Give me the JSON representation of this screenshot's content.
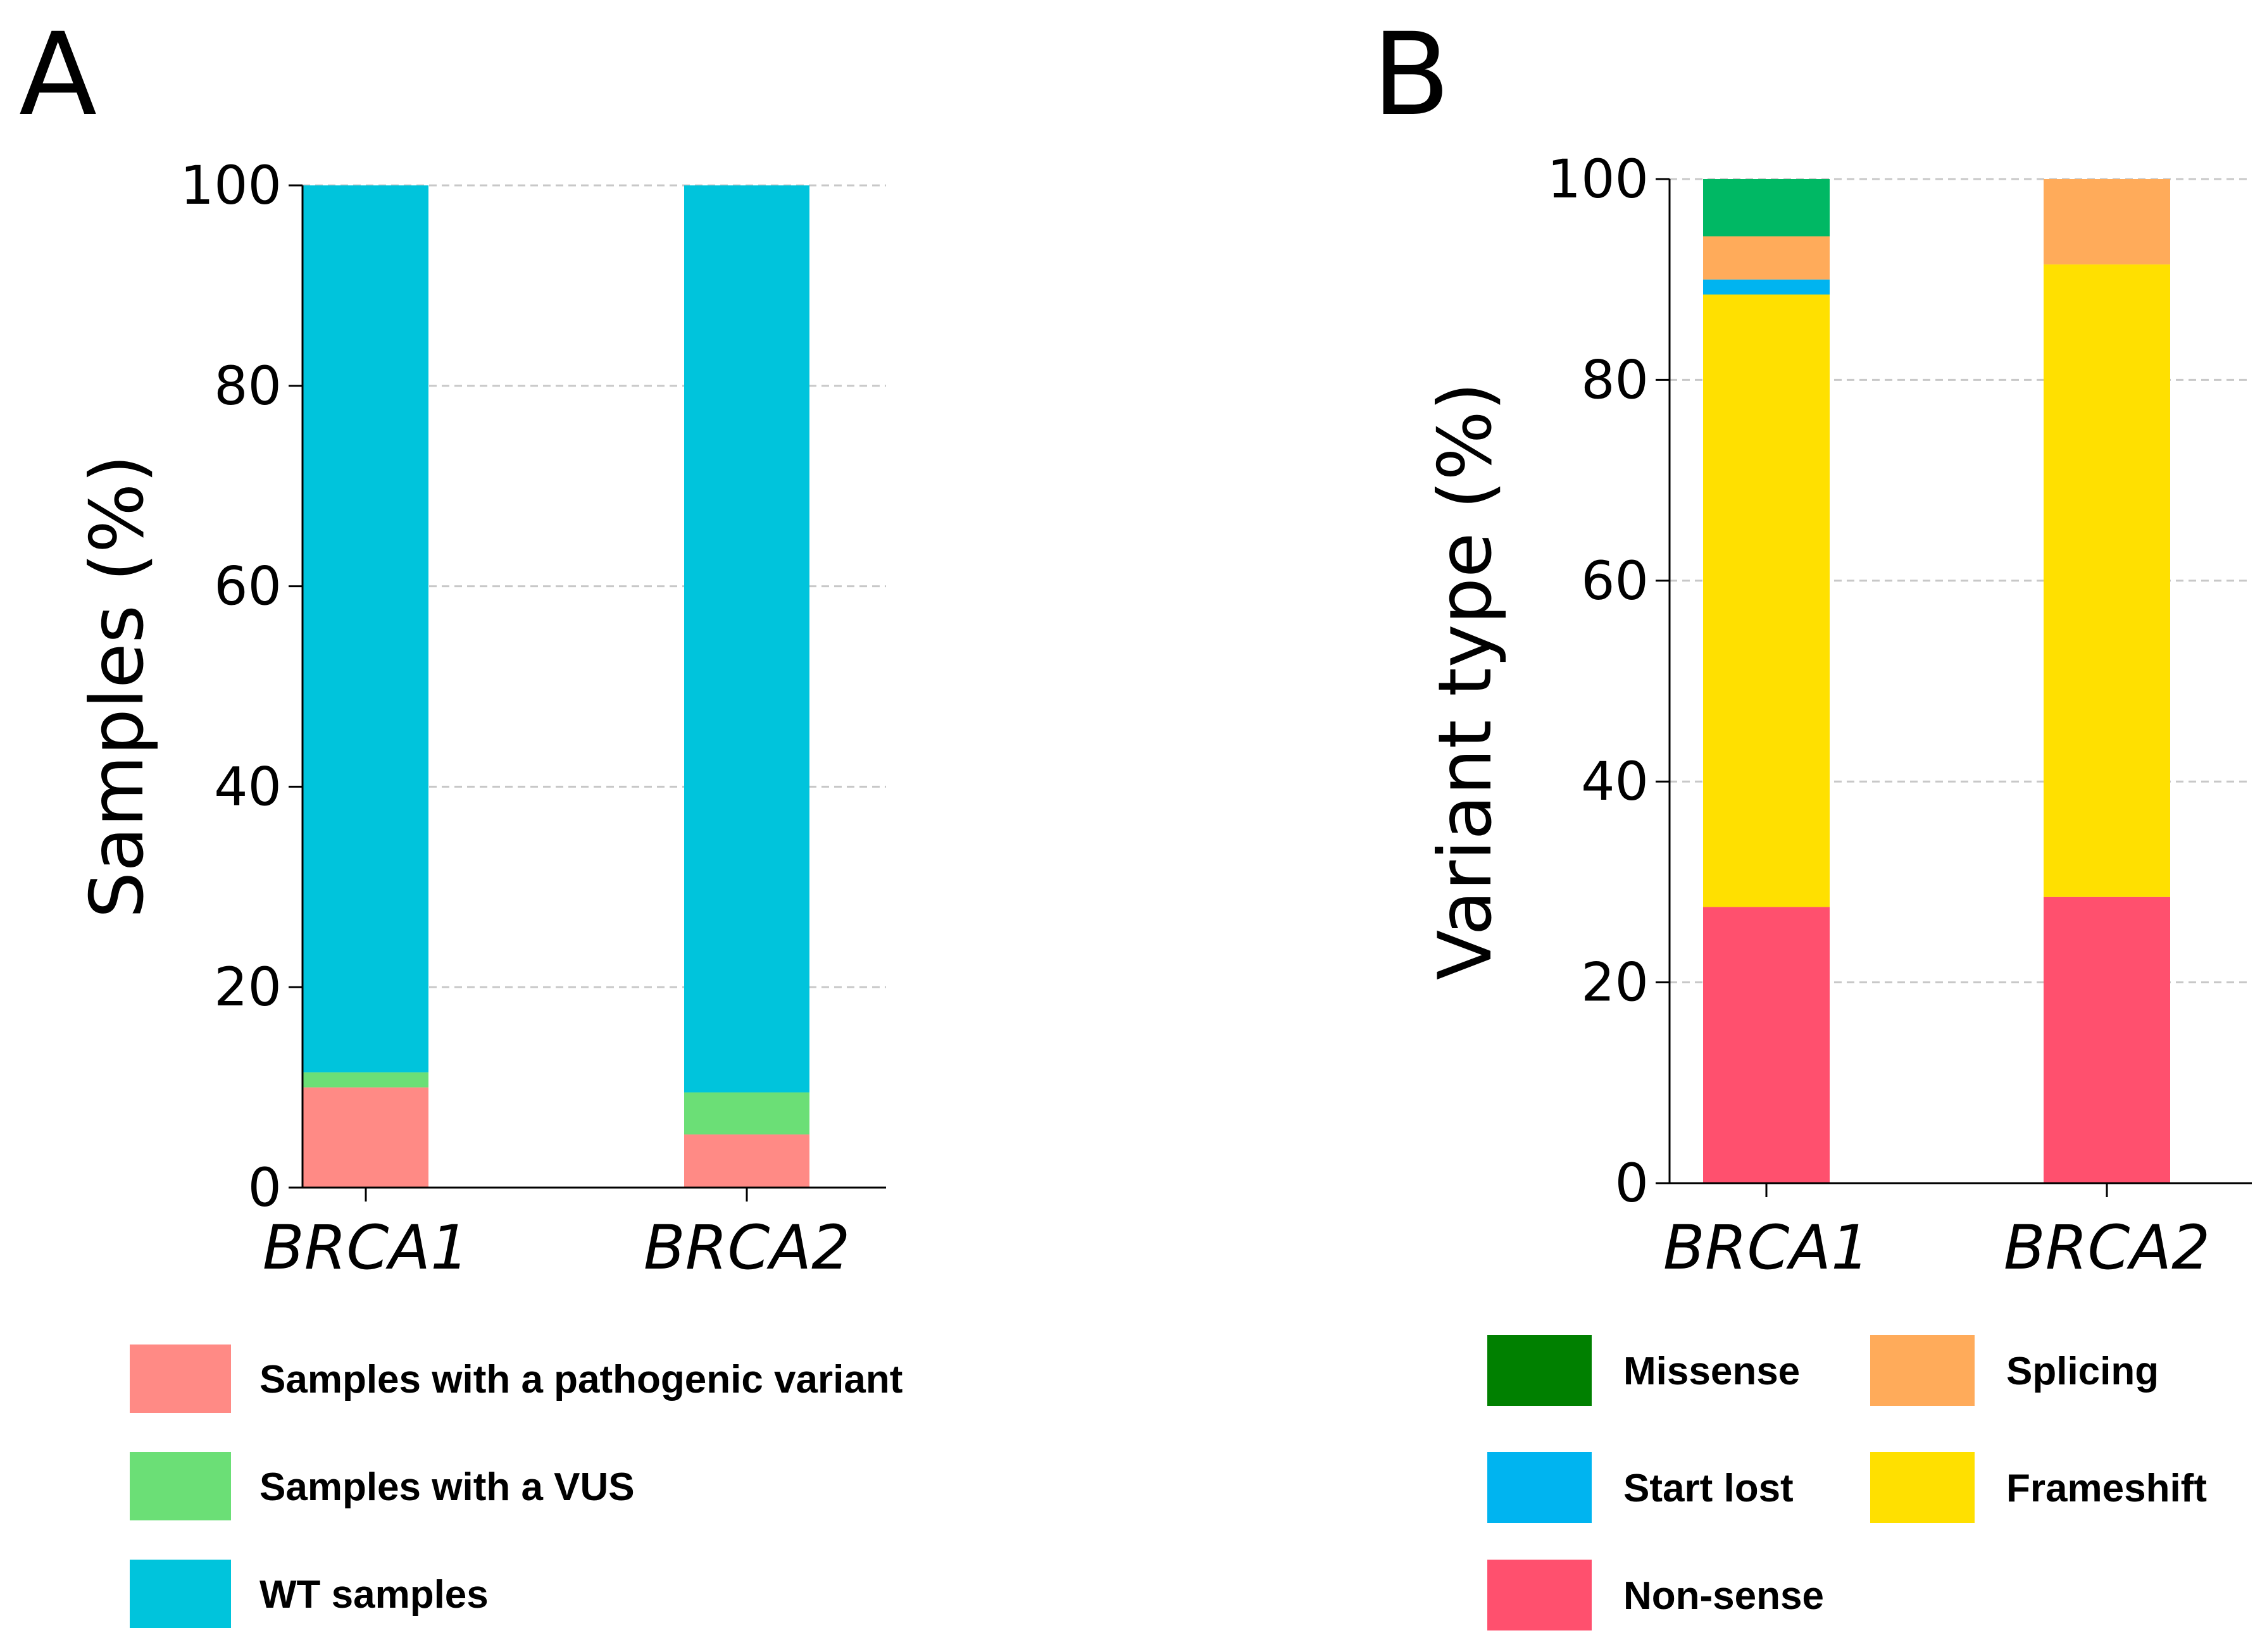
{
  "chart_data": [
    {
      "panel": "A",
      "type": "bar",
      "stacked": true,
      "categories": [
        "BRCA1",
        "BRCA2"
      ],
      "series": [
        {
          "name": "Samples with a pathogenic variant",
          "values": [
            10.0,
            5.3
          ],
          "color": "#FF8A85"
        },
        {
          "name": "Samples with a VUS",
          "values": [
            1.5,
            4.2
          ],
          "color": "#6BDF76"
        },
        {
          "name": "WT samples",
          "values": [
            88.5,
            90.5
          ],
          "color": "#00C4DC"
        }
      ],
      "xlabel": "",
      "ylabel": "Samples (%)",
      "ylim": [
        0,
        100
      ],
      "yticks": [
        "0",
        "20",
        "40",
        "60",
        "80",
        "100"
      ],
      "grid": true,
      "legend_position": "bottom"
    },
    {
      "panel": "B",
      "type": "bar",
      "stacked": true,
      "categories": [
        "BRCA1",
        "BRCA2"
      ],
      "series": [
        {
          "name": "Non-sense",
          "values": [
            27.5,
            28.5
          ],
          "color": "#FF506E"
        },
        {
          "name": "Frameshift",
          "values": [
            61.0,
            63.0
          ],
          "color": "#FFE000"
        },
        {
          "name": "Start lost",
          "values": [
            1.5,
            0
          ],
          "color": "#00B4F0"
        },
        {
          "name": "Splicing",
          "values": [
            4.3,
            8.5
          ],
          "color": "#FFAB5A"
        },
        {
          "name": "Missense",
          "values": [
            5.7,
            0
          ],
          "color": "#00B864",
          "legend_color": "#008000"
        }
      ],
      "xlabel": "",
      "ylabel": "Variant type (%)",
      "ylim": [
        0,
        100
      ],
      "yticks": [
        "0",
        "20",
        "40",
        "60",
        "80",
        "100"
      ],
      "grid": true,
      "legend_position": "bottom"
    }
  ],
  "legend_order": {
    "A": [
      "Samples with a pathogenic variant",
      "Samples with a VUS",
      "WT samples"
    ],
    "B": [
      "Missense",
      "Splicing",
      "Start lost",
      "Frameshift",
      "Non-sense"
    ]
  }
}
